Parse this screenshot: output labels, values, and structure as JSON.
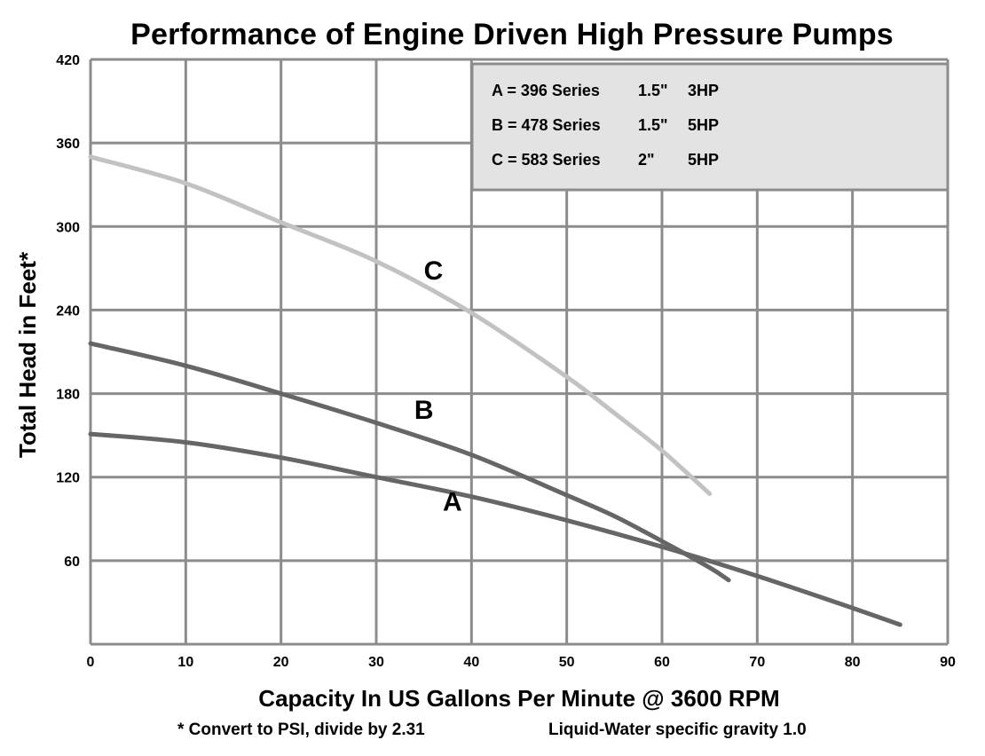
{
  "chart_data": {
    "type": "line",
    "title": "Performance of Engine Driven High Pressure Pumps",
    "xlabel": "Capacity In US Gallons Per Minute @ 3600 RPM",
    "ylabel": "Total Head in Feet*",
    "xlim": [
      0,
      90
    ],
    "ylim": [
      0,
      420
    ],
    "x_ticks": [
      "0",
      "10",
      "20",
      "30",
      "40",
      "50",
      "60",
      "70",
      "80",
      "90"
    ],
    "y_ticks": [
      "60",
      "120",
      "180",
      "240",
      "300",
      "360",
      "420"
    ],
    "grid": true,
    "legend": {
      "placement": "top-right",
      "entries": [
        {
          "key": "A",
          "series": "396 Series",
          "size": "1.5\"",
          "power": "3HP"
        },
        {
          "key": "B",
          "series": "478 Series",
          "size": "1.5\"",
          "power": "5HP"
        },
        {
          "key": "C",
          "series": "583 Series",
          "size": "2\"",
          "power": "5HP"
        }
      ]
    },
    "series": [
      {
        "name": "A",
        "color": "#666666",
        "points": [
          [
            0,
            151
          ],
          [
            10,
            145
          ],
          [
            20,
            134
          ],
          [
            30,
            120
          ],
          [
            40,
            106
          ],
          [
            50,
            89
          ],
          [
            60,
            70
          ],
          [
            70,
            49
          ],
          [
            80,
            26
          ],
          [
            85,
            14
          ]
        ]
      },
      {
        "name": "B",
        "color": "#666666",
        "points": [
          [
            0,
            216
          ],
          [
            10,
            200
          ],
          [
            20,
            180
          ],
          [
            30,
            159
          ],
          [
            40,
            136
          ],
          [
            50,
            107
          ],
          [
            55,
            92
          ],
          [
            60,
            74
          ],
          [
            65,
            55
          ],
          [
            67,
            46
          ]
        ]
      },
      {
        "name": "C",
        "color": "#c2c2c2",
        "points": [
          [
            0,
            350
          ],
          [
            10,
            331
          ],
          [
            20,
            303
          ],
          [
            30,
            275
          ],
          [
            40,
            238
          ],
          [
            50,
            192
          ],
          [
            55,
            166
          ],
          [
            60,
            139
          ],
          [
            65,
            108
          ]
        ]
      }
    ],
    "footnotes": {
      "left": "* Convert to PSI, divide by 2.31",
      "right": "Liquid-Water specific gravity 1.0"
    }
  }
}
